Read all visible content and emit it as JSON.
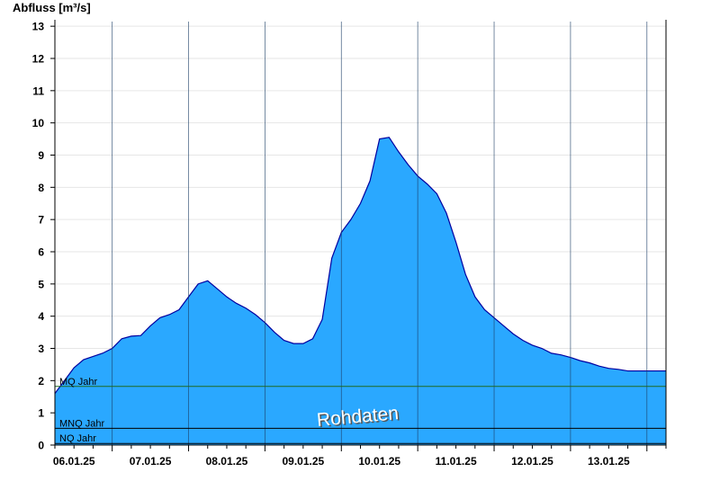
{
  "colors": {
    "area_fill": "#2aa8ff",
    "area_stroke": "#0000a0",
    "mq_line": "#1f6b1f",
    "mnq_line": "#000000",
    "nq_line": "#000000",
    "grid": "#e6e6e6",
    "watermark_fill": "#ffffff",
    "watermark_shadow": "#555555"
  },
  "chart_data": {
    "type": "area",
    "ylabel": "Abfluss [m³/s]",
    "ylim": [
      0,
      13.2
    ],
    "yticks": [
      0,
      1,
      2,
      3,
      4,
      5,
      6,
      7,
      8,
      9,
      10,
      11,
      12,
      13
    ],
    "xlim": [
      "05.01.25 18:00",
      "13.01.25 18:00"
    ],
    "xtick_labels": [
      "06.01.25",
      "07.01.25",
      "08.01.25",
      "09.01.25",
      "10.01.25",
      "11.01.25",
      "12.01.25",
      "13.01.25"
    ],
    "grid": "horizontal",
    "series": [
      {
        "values": [
          [
            "05.01.25 18:00",
            1.6
          ],
          [
            "05.01.25 21:00",
            2.0
          ],
          [
            "06.01.25 00:00",
            2.4
          ],
          [
            "06.01.25 03:00",
            2.65
          ],
          [
            "06.01.25 06:00",
            2.75
          ],
          [
            "06.01.25 09:00",
            2.85
          ],
          [
            "06.01.25 12:00",
            3.0
          ],
          [
            "06.01.25 15:00",
            3.3
          ],
          [
            "06.01.25 18:00",
            3.38
          ],
          [
            "06.01.25 21:00",
            3.4
          ],
          [
            "07.01.25 00:00",
            3.7
          ],
          [
            "07.01.25 03:00",
            3.95
          ],
          [
            "07.01.25 06:00",
            4.05
          ],
          [
            "07.01.25 09:00",
            4.2
          ],
          [
            "07.01.25 12:00",
            4.6
          ],
          [
            "07.01.25 15:00",
            5.0
          ],
          [
            "07.01.25 18:00",
            5.1
          ],
          [
            "07.01.25 21:00",
            4.85
          ],
          [
            "08.01.25 00:00",
            4.6
          ],
          [
            "08.01.25 03:00",
            4.4
          ],
          [
            "08.01.25 06:00",
            4.25
          ],
          [
            "08.01.25 09:00",
            4.05
          ],
          [
            "08.01.25 12:00",
            3.8
          ],
          [
            "08.01.25 15:00",
            3.5
          ],
          [
            "08.01.25 18:00",
            3.25
          ],
          [
            "08.01.25 21:00",
            3.15
          ],
          [
            "09.01.25 00:00",
            3.15
          ],
          [
            "09.01.25 03:00",
            3.3
          ],
          [
            "09.01.25 06:00",
            3.9
          ],
          [
            "09.01.25 09:00",
            5.8
          ],
          [
            "09.01.25 12:00",
            6.6
          ],
          [
            "09.01.25 15:00",
            7.0
          ],
          [
            "09.01.25 18:00",
            7.5
          ],
          [
            "09.01.25 21:00",
            8.2
          ],
          [
            "10.01.25 00:00",
            9.5
          ],
          [
            "10.01.25 03:00",
            9.55
          ],
          [
            "10.01.25 06:00",
            9.1
          ],
          [
            "10.01.25 09:00",
            8.7
          ],
          [
            "10.01.25 12:00",
            8.35
          ],
          [
            "10.01.25 15:00",
            8.1
          ],
          [
            "10.01.25 18:00",
            7.8
          ],
          [
            "10.01.25 21:00",
            7.2
          ],
          [
            "11.01.25 00:00",
            6.3
          ],
          [
            "11.01.25 03:00",
            5.3
          ],
          [
            "11.01.25 06:00",
            4.6
          ],
          [
            "11.01.25 09:00",
            4.2
          ],
          [
            "11.01.25 12:00",
            3.95
          ],
          [
            "11.01.25 15:00",
            3.7
          ],
          [
            "11.01.25 18:00",
            3.45
          ],
          [
            "11.01.25 21:00",
            3.25
          ],
          [
            "12.01.25 00:00",
            3.1
          ],
          [
            "12.01.25 03:00",
            3.0
          ],
          [
            "12.01.25 06:00",
            2.85
          ],
          [
            "12.01.25 09:00",
            2.8
          ],
          [
            "12.01.25 12:00",
            2.72
          ],
          [
            "12.01.25 15:00",
            2.62
          ],
          [
            "12.01.25 18:00",
            2.55
          ],
          [
            "12.01.25 21:00",
            2.45
          ],
          [
            "13.01.25 00:00",
            2.38
          ],
          [
            "13.01.25 03:00",
            2.35
          ],
          [
            "13.01.25 06:00",
            2.3
          ],
          [
            "13.01.25 09:00",
            2.3
          ],
          [
            "13.01.25 12:00",
            2.3
          ],
          [
            "13.01.25 15:00",
            2.3
          ],
          [
            "13.01.25 18:00",
            2.3
          ]
        ]
      }
    ],
    "reference_lines": [
      {
        "label": "MQ Jahr",
        "value": 1.82,
        "color": "#1f6b1f"
      },
      {
        "label": "MNQ Jahr",
        "value": 0.52,
        "color": "#000000"
      },
      {
        "label": "NQ Jahr",
        "value": 0.05,
        "color": "#000000"
      }
    ],
    "watermark": "Rohdaten"
  }
}
